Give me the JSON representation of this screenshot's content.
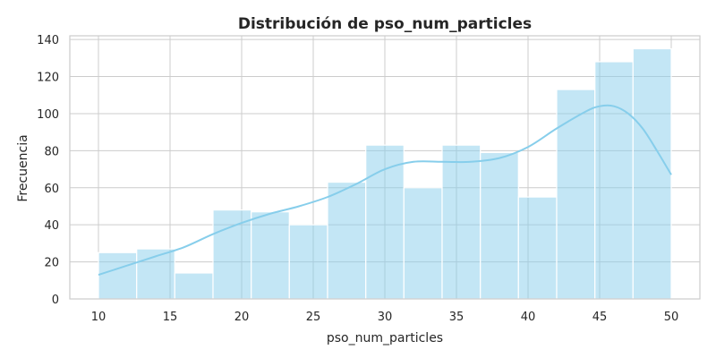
{
  "chart_data": {
    "type": "bar",
    "subtype": "histogram-with-kde",
    "title": "Distribución de pso_num_particles",
    "xlabel": "pso_num_particles",
    "ylabel": "Frecuencia",
    "xlim": [
      8,
      52
    ],
    "ylim": [
      0,
      142
    ],
    "xticks": [
      10,
      15,
      20,
      25,
      30,
      35,
      40,
      45,
      50
    ],
    "yticks": [
      0,
      20,
      40,
      60,
      80,
      100,
      120,
      140
    ],
    "grid": true,
    "bins": [
      {
        "x0": 10.0,
        "x1": 12.67,
        "value": 25
      },
      {
        "x0": 12.67,
        "x1": 15.33,
        "value": 27
      },
      {
        "x0": 15.33,
        "x1": 18.0,
        "value": 14
      },
      {
        "x0": 18.0,
        "x1": 20.67,
        "value": 48
      },
      {
        "x0": 20.67,
        "x1": 23.33,
        "value": 47
      },
      {
        "x0": 23.33,
        "x1": 26.0,
        "value": 40
      },
      {
        "x0": 26.0,
        "x1": 28.67,
        "value": 63
      },
      {
        "x0": 28.67,
        "x1": 31.33,
        "value": 83
      },
      {
        "x0": 31.33,
        "x1": 34.0,
        "value": 60
      },
      {
        "x0": 34.0,
        "x1": 36.67,
        "value": 83
      },
      {
        "x0": 36.67,
        "x1": 39.33,
        "value": 79
      },
      {
        "x0": 39.33,
        "x1": 42.0,
        "value": 55
      },
      {
        "x0": 42.0,
        "x1": 44.67,
        "value": 113
      },
      {
        "x0": 44.67,
        "x1": 47.33,
        "value": 128
      },
      {
        "x0": 47.33,
        "x1": 50.0,
        "value": 135
      }
    ],
    "kde": {
      "x": [
        10,
        12,
        14,
        16,
        18,
        20,
        22,
        24,
        26,
        28,
        30,
        32,
        34,
        36,
        38,
        40,
        42,
        44,
        45,
        46,
        47,
        48,
        49,
        50
      ],
      "y": [
        13,
        18,
        23,
        28,
        35,
        41,
        46,
        50,
        55,
        62,
        70,
        74,
        74,
        74,
        76,
        82,
        92,
        101,
        104,
        104,
        100,
        92,
        80,
        67
      ]
    },
    "colors": {
      "bar_fill": "#87ceeb",
      "bar_opacity": 0.5,
      "kde_line": "#87ceeb"
    }
  }
}
